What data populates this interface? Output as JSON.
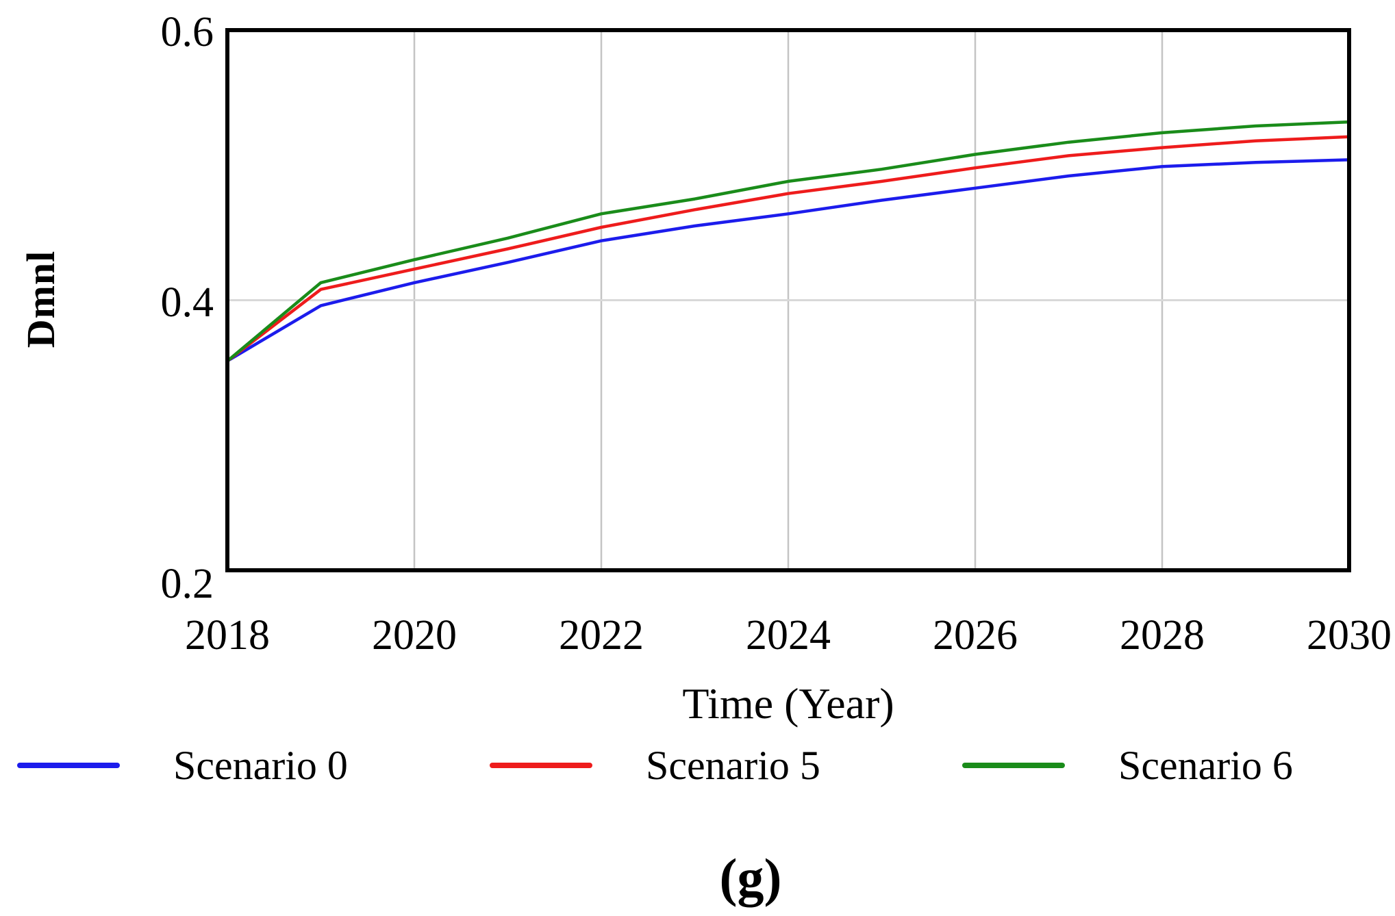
{
  "figure": {
    "caption": "(g)"
  },
  "chart_data": {
    "type": "line",
    "title": "",
    "xlabel": "Time (Year)",
    "ylabel": "Dmnl",
    "xlim": [
      2018,
      2030
    ],
    "ylim": [
      0.2,
      0.6
    ],
    "x_ticks": [
      2018,
      2020,
      2022,
      2024,
      2026,
      2028,
      2030
    ],
    "y_ticks": [
      0.2,
      0.4,
      0.6
    ],
    "y_tick_decimals": 1,
    "grid": true,
    "legend_position": "bottom",
    "x": [
      2018,
      2019,
      2020,
      2021,
      2022,
      2023,
      2024,
      2025,
      2026,
      2027,
      2028,
      2029,
      2030
    ],
    "series": [
      {
        "name": "Scenario 0",
        "color": "#1c1cec",
        "values": [
          0.355,
          0.396,
          0.413,
          0.428,
          0.444,
          0.455,
          0.464,
          0.474,
          0.483,
          0.492,
          0.499,
          0.502,
          0.504
        ]
      },
      {
        "name": "Scenario 5",
        "color": "#ee1c1c",
        "values": [
          0.355,
          0.408,
          0.423,
          0.438,
          0.454,
          0.467,
          0.479,
          0.488,
          0.498,
          0.507,
          0.513,
          0.518,
          0.521
        ]
      },
      {
        "name": "Scenario 6",
        "color": "#1a8c1a",
        "values": [
          0.355,
          0.413,
          0.43,
          0.446,
          0.464,
          0.475,
          0.488,
          0.497,
          0.508,
          0.517,
          0.524,
          0.529,
          0.532
        ]
      }
    ]
  },
  "colors": {
    "background": "#ffffff",
    "axis_frame": "#000000",
    "grid_vertical": "#c4c4c4",
    "grid_horizontal": "#d8d8d8",
    "text": "#000000"
  }
}
